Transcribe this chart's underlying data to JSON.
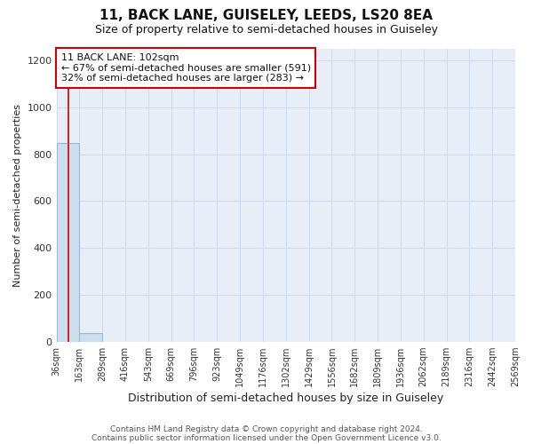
{
  "title": "11, BACK LANE, GUISELEY, LEEDS, LS20 8EA",
  "subtitle": "Size of property relative to semi-detached houses in Guiseley",
  "xlabel": "Distribution of semi-detached houses by size in Guiseley",
  "ylabel": "Number of semi-detached properties",
  "footnote1": "Contains HM Land Registry data © Crown copyright and database right 2024.",
  "footnote2": "Contains public sector information licensed under the Open Government Licence v3.0.",
  "bin_edges": [
    36,
    163,
    289,
    416,
    543,
    669,
    796,
    923,
    1049,
    1176,
    1302,
    1429,
    1556,
    1682,
    1809,
    1936,
    2062,
    2189,
    2316,
    2442,
    2569
  ],
  "bar_heights": [
    850,
    35,
    0,
    0,
    0,
    0,
    0,
    0,
    0,
    0,
    0,
    0,
    0,
    0,
    0,
    0,
    0,
    0,
    0,
    0
  ],
  "bar_color": "#ccdded",
  "bar_edge_color": "#99bbd4",
  "property_size": 102,
  "property_line_color": "#cc0000",
  "ylim_max": 1250,
  "yticks": [
    0,
    200,
    400,
    600,
    800,
    1000,
    1200
  ],
  "annotation_line1": "11 BACK LANE: 102sqm",
  "annotation_line2": "← 67% of semi-detached houses are smaller (591)",
  "annotation_line3": "32% of semi-detached houses are larger (283) →",
  "annotation_box_color": "#ffffff",
  "annotation_border_color": "#cc0000",
  "grid_color": "#d0dcec",
  "plot_bg_color": "#e8eef8",
  "fig_bg_color": "#ffffff"
}
